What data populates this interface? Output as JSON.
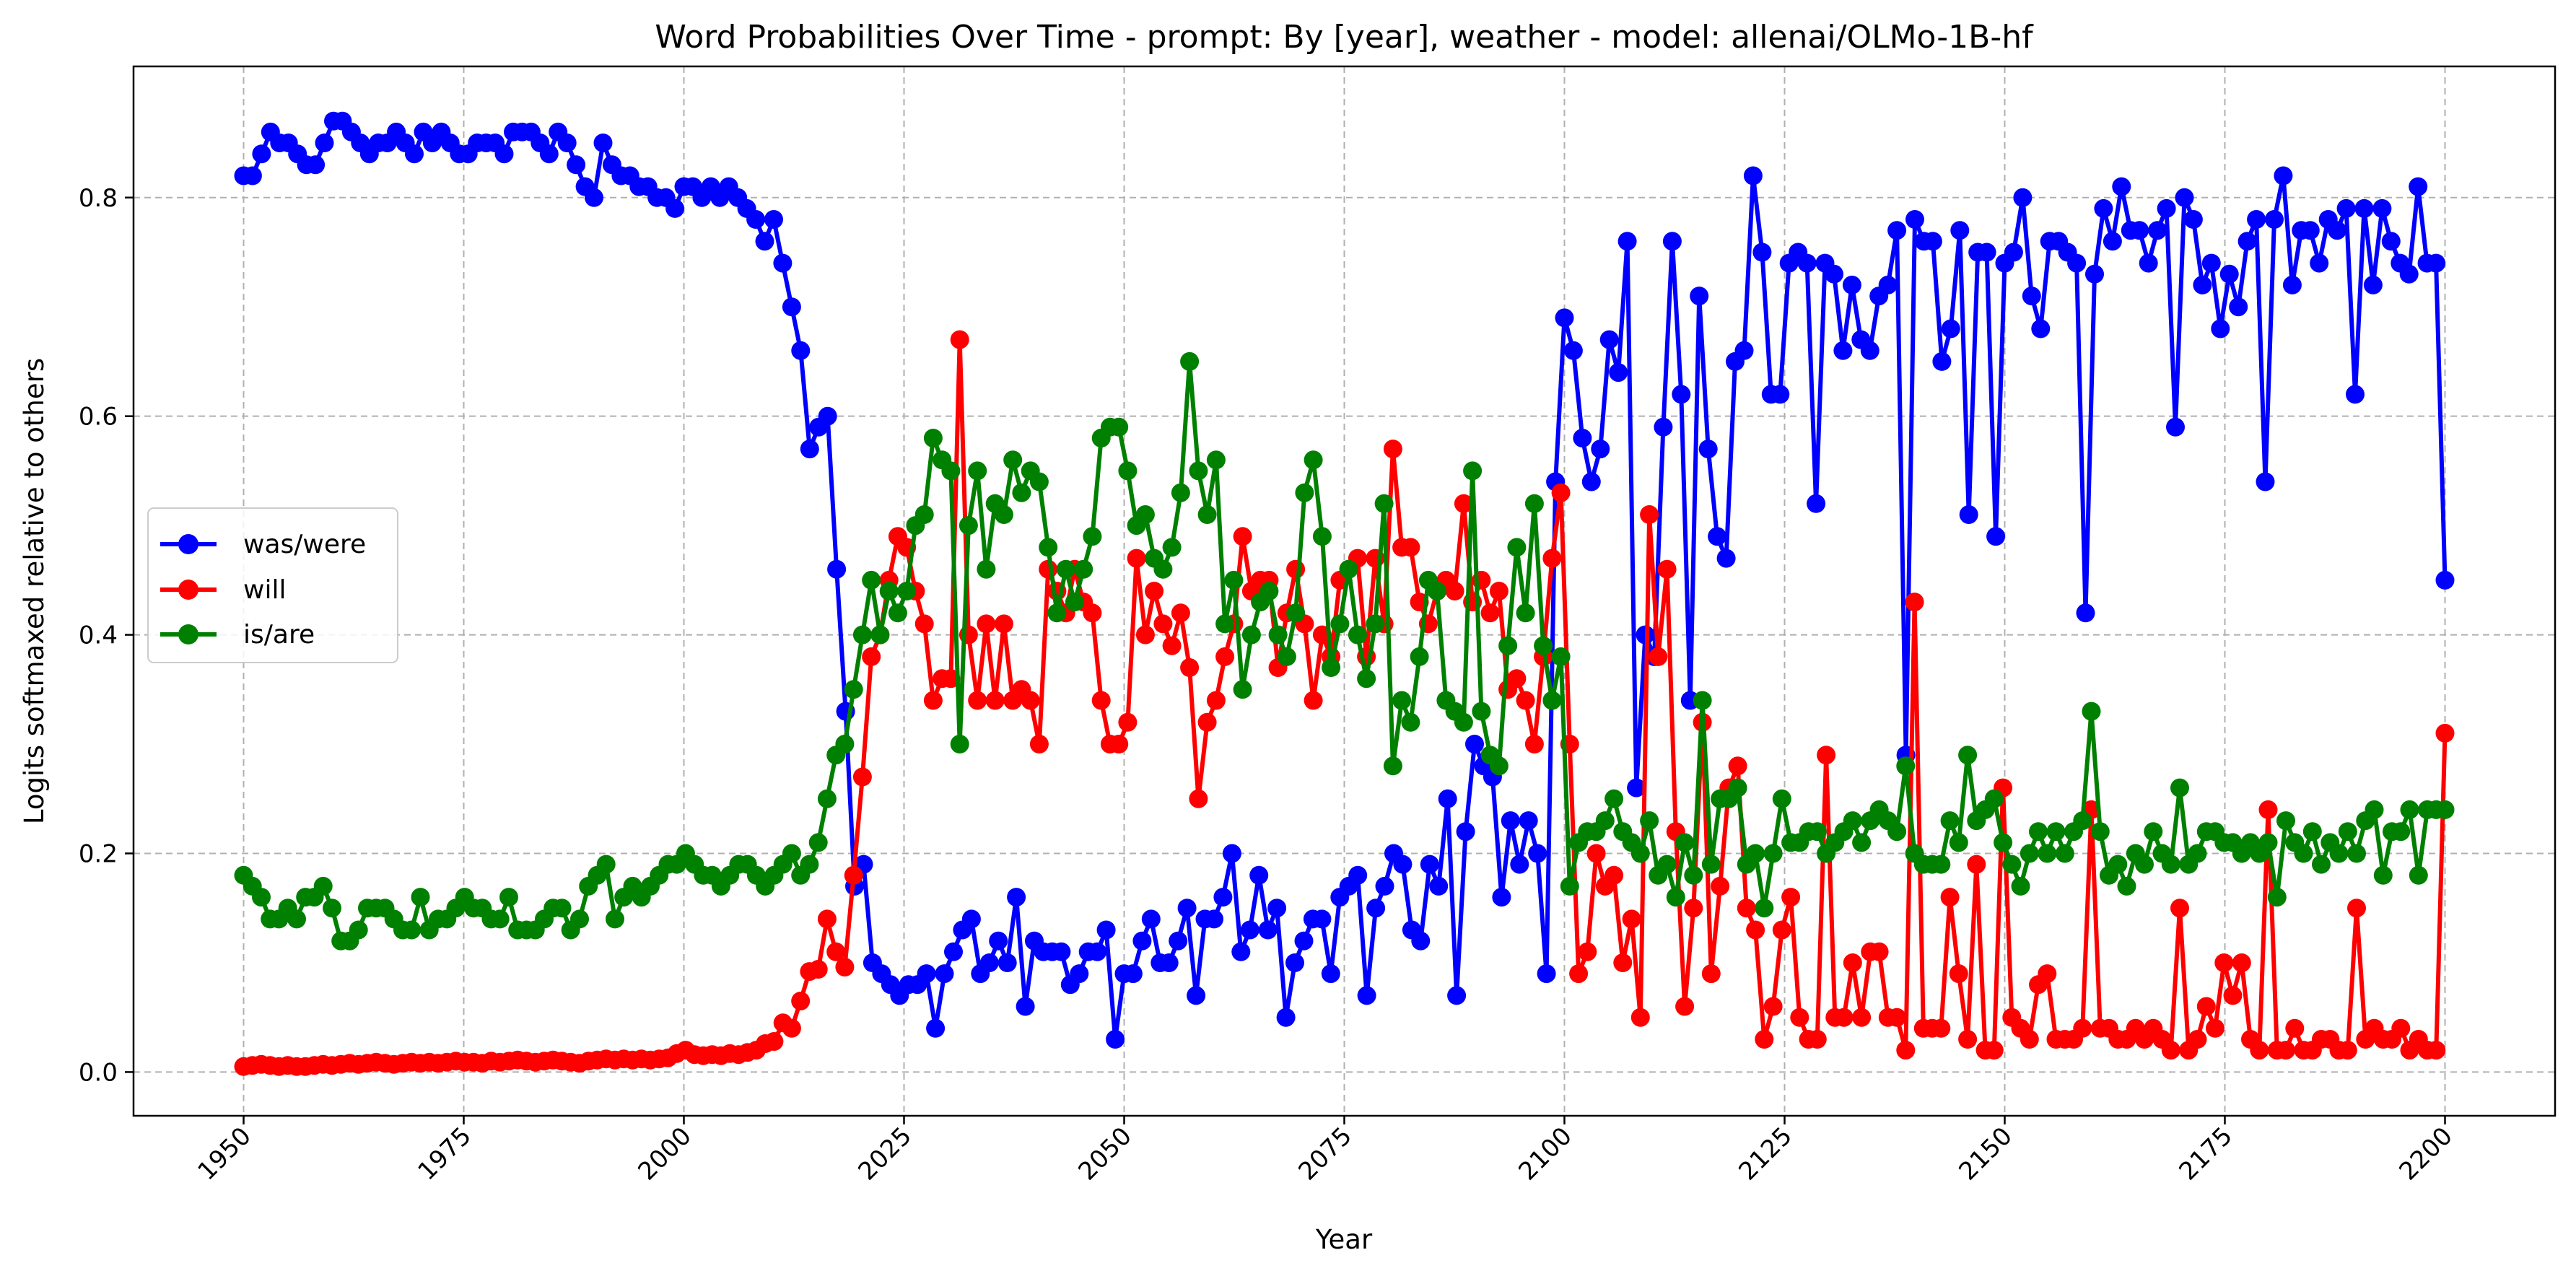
{
  "chart_data": {
    "type": "line",
    "title": "Word Probabilities Over Time - prompt: By [year], weather - model: allenai/OLMo-1B-hf",
    "xlabel": "Year",
    "ylabel": "Logits softmaxed relative to others",
    "xlim": [
      1937.5,
      2212.5
    ],
    "ylim": [
      -0.04,
      0.92
    ],
    "xticks": [
      1950,
      1975,
      2000,
      2025,
      2050,
      2075,
      2100,
      2125,
      2150,
      2175,
      2200
    ],
    "yticks": [
      0.0,
      0.2,
      0.4,
      0.6,
      0.8
    ],
    "ytick_labels": [
      "0.0",
      "0.2",
      "0.4",
      "0.6",
      "0.8"
    ],
    "grid": true,
    "legend_position": "center-left",
    "x_start": 1950,
    "x_end": 2200,
    "series": [
      {
        "name": "was/were",
        "color": "#0000ff",
        "values": [
          0.82,
          0.82,
          0.84,
          0.86,
          0.85,
          0.85,
          0.84,
          0.83,
          0.83,
          0.85,
          0.87,
          0.87,
          0.86,
          0.85,
          0.84,
          0.85,
          0.85,
          0.86,
          0.85,
          0.84,
          0.86,
          0.85,
          0.86,
          0.85,
          0.84,
          0.84,
          0.85,
          0.85,
          0.85,
          0.84,
          0.86,
          0.86,
          0.86,
          0.85,
          0.84,
          0.86,
          0.85,
          0.83,
          0.81,
          0.8,
          0.85,
          0.83,
          0.82,
          0.82,
          0.81,
          0.81,
          0.8,
          0.8,
          0.79,
          0.81,
          0.81,
          0.8,
          0.81,
          0.8,
          0.81,
          0.8,
          0.79,
          0.78,
          0.76,
          0.78,
          0.74,
          0.7,
          0.66,
          0.57,
          0.59,
          0.6,
          0.46,
          0.33,
          0.17,
          0.19,
          0.1,
          0.09,
          0.08,
          0.07,
          0.08,
          0.08,
          0.09,
          0.04,
          0.09,
          0.11,
          0.13,
          0.14,
          0.09,
          0.1,
          0.12,
          0.1,
          0.16,
          0.06,
          0.12,
          0.11,
          0.11,
          0.11,
          0.08,
          0.09,
          0.11,
          0.11,
          0.13,
          0.03,
          0.09,
          0.09,
          0.12,
          0.14,
          0.1,
          0.1,
          0.12,
          0.15,
          0.07,
          0.14,
          0.14,
          0.16,
          0.2,
          0.11,
          0.13,
          0.18,
          0.13,
          0.15,
          0.05,
          0.1,
          0.12,
          0.14,
          0.14,
          0.09,
          0.16,
          0.17,
          0.18,
          0.07,
          0.15,
          0.17,
          0.2,
          0.19,
          0.13,
          0.12,
          0.19,
          0.17,
          0.25,
          0.07,
          0.22,
          0.3,
          0.28,
          0.27,
          0.16,
          0.23,
          0.19,
          0.23,
          0.2,
          0.09,
          0.54,
          0.69,
          0.66,
          0.58,
          0.54,
          0.57,
          0.67,
          0.64,
          0.76,
          0.26,
          0.4,
          0.38,
          0.59,
          0.76,
          0.62,
          0.34,
          0.71,
          0.57,
          0.49,
          0.47,
          0.65,
          0.66,
          0.82,
          0.75,
          0.62,
          0.62,
          0.74,
          0.75,
          0.74,
          0.52,
          0.74,
          0.73,
          0.66,
          0.72,
          0.67,
          0.66,
          0.71,
          0.72,
          0.77,
          0.29,
          0.78,
          0.76,
          0.76,
          0.65,
          0.68,
          0.77,
          0.51,
          0.75,
          0.75,
          0.49,
          0.74,
          0.75,
          0.8,
          0.71,
          0.68,
          0.76,
          0.76,
          0.75,
          0.74,
          0.42,
          0.73,
          0.79,
          0.76,
          0.81,
          0.77,
          0.77,
          0.74,
          0.77,
          0.79,
          0.59,
          0.8,
          0.78,
          0.72,
          0.74,
          0.68,
          0.73,
          0.7,
          0.76,
          0.78,
          0.54,
          0.78,
          0.82,
          0.72,
          0.77,
          0.77,
          0.74,
          0.78,
          0.77,
          0.79,
          0.62,
          0.79,
          0.72,
          0.79,
          0.76,
          0.74,
          0.73,
          0.81,
          0.74,
          0.74,
          0.45
        ]
      },
      {
        "name": "will",
        "color": "#ff0000",
        "values": [
          0.005,
          0.006,
          0.007,
          0.006,
          0.005,
          0.006,
          0.005,
          0.005,
          0.006,
          0.007,
          0.006,
          0.007,
          0.008,
          0.007,
          0.008,
          0.009,
          0.008,
          0.007,
          0.008,
          0.009,
          0.008,
          0.009,
          0.008,
          0.009,
          0.01,
          0.009,
          0.009,
          0.008,
          0.01,
          0.009,
          0.01,
          0.011,
          0.01,
          0.009,
          0.01,
          0.011,
          0.01,
          0.009,
          0.008,
          0.01,
          0.011,
          0.012,
          0.011,
          0.012,
          0.011,
          0.012,
          0.011,
          0.012,
          0.013,
          0.017,
          0.02,
          0.016,
          0.015,
          0.016,
          0.015,
          0.017,
          0.016,
          0.018,
          0.02,
          0.026,
          0.028,
          0.045,
          0.04,
          0.065,
          0.092,
          0.094,
          0.14,
          0.11,
          0.096,
          0.18,
          0.27,
          0.38,
          0.4,
          0.45,
          0.49,
          0.48,
          0.44,
          0.41,
          0.34,
          0.36,
          0.36,
          0.67,
          0.4,
          0.34,
          0.41,
          0.34,
          0.41,
          0.34,
          0.35,
          0.34,
          0.3,
          0.46,
          0.44,
          0.42,
          0.46,
          0.43,
          0.42,
          0.34,
          0.3,
          0.3,
          0.32,
          0.47,
          0.4,
          0.44,
          0.41,
          0.39,
          0.42,
          0.37,
          0.25,
          0.32,
          0.34,
          0.38,
          0.41,
          0.49,
          0.44,
          0.45,
          0.45,
          0.37,
          0.42,
          0.46,
          0.41,
          0.34,
          0.4,
          0.38,
          0.45,
          0.46,
          0.47,
          0.38,
          0.47,
          0.41,
          0.57,
          0.48,
          0.48,
          0.43,
          0.41,
          0.44,
          0.45,
          0.44,
          0.52,
          0.43,
          0.45,
          0.42,
          0.44,
          0.35,
          0.36,
          0.34,
          0.3,
          0.38,
          0.47,
          0.53,
          0.3,
          0.09,
          0.11,
          0.2,
          0.17,
          0.18,
          0.1,
          0.14,
          0.05,
          0.51,
          0.38,
          0.46,
          0.22,
          0.06,
          0.15,
          0.32,
          0.09,
          0.17,
          0.26,
          0.28,
          0.15,
          0.13,
          0.03,
          0.06,
          0.13,
          0.16,
          0.05,
          0.03,
          0.03,
          0.29,
          0.05,
          0.05,
          0.1,
          0.05,
          0.11,
          0.11,
          0.05,
          0.05,
          0.02,
          0.43,
          0.04,
          0.04,
          0.04,
          0.16,
          0.09,
          0.03,
          0.19,
          0.02,
          0.02,
          0.26,
          0.05,
          0.04,
          0.03,
          0.08,
          0.09,
          0.03,
          0.03,
          0.03,
          0.04,
          0.24,
          0.04,
          0.04,
          0.03,
          0.03,
          0.04,
          0.03,
          0.04,
          0.03,
          0.02,
          0.15,
          0.02,
          0.03,
          0.06,
          0.04,
          0.1,
          0.07,
          0.1,
          0.03,
          0.02,
          0.24,
          0.02,
          0.02,
          0.04,
          0.02,
          0.02,
          0.03,
          0.03,
          0.02,
          0.02,
          0.15,
          0.03,
          0.04,
          0.03,
          0.03,
          0.04,
          0.02,
          0.03,
          0.02,
          0.02,
          0.31
        ]
      },
      {
        "name": "is/are",
        "color": "#008000",
        "values": [
          0.18,
          0.17,
          0.16,
          0.14,
          0.14,
          0.15,
          0.14,
          0.16,
          0.16,
          0.17,
          0.15,
          0.12,
          0.12,
          0.13,
          0.15,
          0.15,
          0.15,
          0.14,
          0.13,
          0.13,
          0.16,
          0.13,
          0.14,
          0.14,
          0.15,
          0.16,
          0.15,
          0.15,
          0.14,
          0.14,
          0.16,
          0.13,
          0.13,
          0.13,
          0.14,
          0.15,
          0.15,
          0.13,
          0.14,
          0.17,
          0.18,
          0.19,
          0.14,
          0.16,
          0.17,
          0.16,
          0.17,
          0.18,
          0.19,
          0.19,
          0.2,
          0.19,
          0.18,
          0.18,
          0.17,
          0.18,
          0.19,
          0.19,
          0.18,
          0.17,
          0.18,
          0.19,
          0.2,
          0.18,
          0.19,
          0.21,
          0.25,
          0.29,
          0.3,
          0.35,
          0.4,
          0.45,
          0.4,
          0.44,
          0.42,
          0.44,
          0.5,
          0.51,
          0.58,
          0.56,
          0.55,
          0.3,
          0.5,
          0.55,
          0.46,
          0.52,
          0.51,
          0.56,
          0.53,
          0.55,
          0.54,
          0.48,
          0.42,
          0.46,
          0.43,
          0.46,
          0.49,
          0.58,
          0.59,
          0.59,
          0.55,
          0.5,
          0.51,
          0.47,
          0.46,
          0.48,
          0.53,
          0.65,
          0.55,
          0.51,
          0.56,
          0.41,
          0.45,
          0.35,
          0.4,
          0.43,
          0.44,
          0.4,
          0.38,
          0.42,
          0.53,
          0.56,
          0.49,
          0.37,
          0.41,
          0.46,
          0.4,
          0.36,
          0.41,
          0.52,
          0.28,
          0.34,
          0.32,
          0.38,
          0.45,
          0.44,
          0.34,
          0.33,
          0.32,
          0.55,
          0.33,
          0.29,
          0.28,
          0.39,
          0.48,
          0.42,
          0.52,
          0.39,
          0.34,
          0.38,
          0.17,
          0.21,
          0.22,
          0.22,
          0.23,
          0.25,
          0.22,
          0.21,
          0.2,
          0.23,
          0.18,
          0.19,
          0.16,
          0.21,
          0.18,
          0.34,
          0.19,
          0.25,
          0.25,
          0.26,
          0.19,
          0.2,
          0.15,
          0.2,
          0.25,
          0.21,
          0.21,
          0.22,
          0.22,
          0.2,
          0.21,
          0.22,
          0.23,
          0.21,
          0.23,
          0.24,
          0.23,
          0.22,
          0.28,
          0.2,
          0.19,
          0.19,
          0.19,
          0.23,
          0.21,
          0.29,
          0.23,
          0.24,
          0.25,
          0.21,
          0.19,
          0.17,
          0.2,
          0.22,
          0.2,
          0.22,
          0.2,
          0.22,
          0.23,
          0.33,
          0.22,
          0.18,
          0.19,
          0.17,
          0.2,
          0.19,
          0.22,
          0.2,
          0.19,
          0.26,
          0.19,
          0.2,
          0.22,
          0.22,
          0.21,
          0.21,
          0.2,
          0.21,
          0.2,
          0.21,
          0.16,
          0.23,
          0.21,
          0.2,
          0.22,
          0.19,
          0.21,
          0.2,
          0.22,
          0.2,
          0.23,
          0.24,
          0.18,
          0.22,
          0.22,
          0.24,
          0.18,
          0.24,
          0.24,
          0.24
        ]
      }
    ]
  },
  "colors": {
    "was_were": "#0000ff",
    "will": "#ff0000",
    "is_are": "#008000"
  }
}
